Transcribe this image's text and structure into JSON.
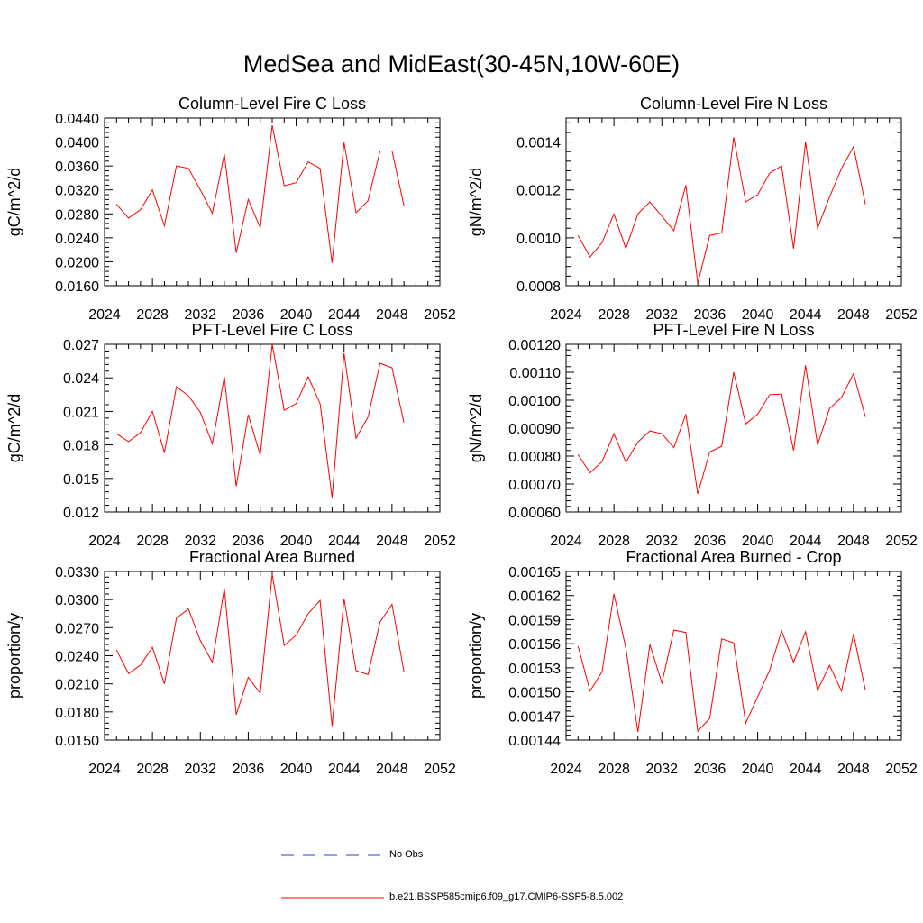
{
  "page": {
    "title": "MedSea and MidEast(30-45N,10W-60E)"
  },
  "legend": [
    {
      "label": "No Obs",
      "color": "#3a3acc",
      "dashed": true
    },
    {
      "label": "b.e21.BSSP585cmip6.f09_g17.CMIP6-SSP5-8.5.002",
      "color": "#ff0000",
      "dashed": false
    }
  ],
  "chart_data": [
    {
      "type": "line",
      "title": "Column-Level Fire C Loss",
      "xlabel": "",
      "ylabel": "gC/m^2/d",
      "xlim": [
        2024,
        2052
      ],
      "ylim": [
        0.016,
        0.044
      ],
      "xticks": [
        2024,
        2028,
        2032,
        2036,
        2040,
        2044,
        2048,
        2052
      ],
      "yticks": [
        "0.0160",
        "0.0200",
        "0.0240",
        "0.0280",
        "0.0320",
        "0.0360",
        "0.0400",
        "0.0440"
      ],
      "x": [
        2025,
        2026,
        2027,
        2028,
        2029,
        2030,
        2031,
        2032,
        2033,
        2034,
        2035,
        2036,
        2037,
        2038,
        2039,
        2040,
        2041,
        2042,
        2043,
        2044,
        2045,
        2046,
        2047,
        2048,
        2049
      ],
      "series": [
        {
          "color": "#ff0000",
          "values": [
            0.0296,
            0.0273,
            0.0287,
            0.032,
            0.026,
            0.036,
            0.0356,
            0.032,
            0.0281,
            0.038,
            0.0215,
            0.0304,
            0.0257,
            0.0428,
            0.0327,
            0.0332,
            0.0367,
            0.0356,
            0.0198,
            0.0399,
            0.0282,
            0.0302,
            0.0385,
            0.0385,
            0.0294
          ]
        }
      ]
    },
    {
      "type": "line",
      "title": "Column-Level Fire N Loss",
      "xlabel": "",
      "ylabel": "gN/m^2/d",
      "xlim": [
        2024,
        2052
      ],
      "ylim": [
        0.0008,
        0.0015
      ],
      "xticks": [
        2024,
        2028,
        2032,
        2036,
        2040,
        2044,
        2048,
        2052
      ],
      "yticks": [
        "0.0008",
        "0.0010",
        "0.0012",
        "0.0014"
      ],
      "x": [
        2025,
        2026,
        2027,
        2028,
        2029,
        2030,
        2031,
        2032,
        2033,
        2034,
        2035,
        2036,
        2037,
        2038,
        2039,
        2040,
        2041,
        2042,
        2043,
        2044,
        2045,
        2046,
        2047,
        2048,
        2049
      ],
      "series": [
        {
          "color": "#ff0000",
          "values": [
            0.00101,
            0.00092,
            0.00098,
            0.0011,
            0.000955,
            0.0011,
            0.00115,
            0.00109,
            0.00103,
            0.00122,
            0.00081,
            0.00101,
            0.00102,
            0.00142,
            0.00115,
            0.00118,
            0.00127,
            0.0013,
            0.000955,
            0.0014,
            0.00104,
            0.00117,
            0.00129,
            0.00138,
            0.00114
          ]
        }
      ]
    },
    {
      "type": "line",
      "title": "PFT-Level Fire C Loss",
      "xlabel": "",
      "ylabel": "gC/m^2/d",
      "xlim": [
        2024,
        2052
      ],
      "ylim": [
        0.012,
        0.027
      ],
      "xticks": [
        2024,
        2028,
        2032,
        2036,
        2040,
        2044,
        2048,
        2052
      ],
      "yticks": [
        "0.012",
        "0.015",
        "0.018",
        "0.021",
        "0.024",
        "0.027"
      ],
      "x": [
        2025,
        2026,
        2027,
        2028,
        2029,
        2030,
        2031,
        2032,
        2033,
        2034,
        2035,
        2036,
        2037,
        2038,
        2039,
        2040,
        2041,
        2042,
        2043,
        2044,
        2045,
        2046,
        2047,
        2048,
        2049
      ],
      "series": [
        {
          "color": "#ff0000",
          "values": [
            0.019,
            0.0183,
            0.0191,
            0.021,
            0.0173,
            0.0232,
            0.0224,
            0.0209,
            0.0181,
            0.0241,
            0.0143,
            0.0207,
            0.0171,
            0.027,
            0.0211,
            0.0217,
            0.0241,
            0.0217,
            0.0133,
            0.0262,
            0.0186,
            0.0205,
            0.0253,
            0.0249,
            0.02
          ]
        }
      ]
    },
    {
      "type": "line",
      "title": "PFT-Level Fire N Loss",
      "xlabel": "",
      "ylabel": "gN/m^2/d",
      "xlim": [
        2024,
        2052
      ],
      "ylim": [
        0.0006,
        0.0012
      ],
      "xticks": [
        2024,
        2028,
        2032,
        2036,
        2040,
        2044,
        2048,
        2052
      ],
      "yticks": [
        "0.00060",
        "0.00070",
        "0.00080",
        "0.00090",
        "0.00100",
        "0.00110",
        "0.00120"
      ],
      "x": [
        2025,
        2026,
        2027,
        2028,
        2029,
        2030,
        2031,
        2032,
        2033,
        2034,
        2035,
        2036,
        2037,
        2038,
        2039,
        2040,
        2041,
        2042,
        2043,
        2044,
        2045,
        2046,
        2047,
        2048,
        2049
      ],
      "series": [
        {
          "color": "#ff0000",
          "values": [
            0.000805,
            0.00074,
            0.00078,
            0.00088,
            0.000778,
            0.00085,
            0.00089,
            0.00088,
            0.00083,
            0.00095,
            0.000665,
            0.000815,
            0.000835,
            0.0011,
            0.000915,
            0.00095,
            0.00102,
            0.001022,
            0.00082,
            0.001125,
            0.00084,
            0.00097,
            0.00101,
            0.001095,
            0.00094
          ]
        }
      ]
    },
    {
      "type": "line",
      "title": "Fractional Area Burned",
      "xlabel": "",
      "ylabel": "proportion/y",
      "xlim": [
        2024,
        2052
      ],
      "ylim": [
        0.015,
        0.033
      ],
      "xticks": [
        2024,
        2028,
        2032,
        2036,
        2040,
        2044,
        2048,
        2052
      ],
      "yticks": [
        "0.0150",
        "0.0180",
        "0.0210",
        "0.0240",
        "0.0270",
        "0.0300",
        "0.0330"
      ],
      "x": [
        2025,
        2026,
        2027,
        2028,
        2029,
        2030,
        2031,
        2032,
        2033,
        2034,
        2035,
        2036,
        2037,
        2038,
        2039,
        2040,
        2041,
        2042,
        2043,
        2044,
        2045,
        2046,
        2047,
        2048,
        2049
      ],
      "series": [
        {
          "color": "#ff0000",
          "values": [
            0.0246,
            0.0221,
            0.023,
            0.0249,
            0.021,
            0.028,
            0.029,
            0.0256,
            0.0233,
            0.0312,
            0.0177,
            0.0217,
            0.02,
            0.0327,
            0.0251,
            0.0262,
            0.0285,
            0.0299,
            0.0165,
            0.0301,
            0.0224,
            0.022,
            0.0276,
            0.0295,
            0.0223
          ]
        }
      ]
    },
    {
      "type": "line",
      "title": "Fractional Area Burned - Crop",
      "xlabel": "",
      "ylabel": "proportion/y",
      "xlim": [
        2024,
        2052
      ],
      "ylim": [
        0.00144,
        0.00165
      ],
      "xticks": [
        2024,
        2028,
        2032,
        2036,
        2040,
        2044,
        2048,
        2052
      ],
      "yticks": [
        "0.00144",
        "0.00147",
        "0.00150",
        "0.00153",
        "0.00156",
        "0.00159",
        "0.00162",
        "0.00165"
      ],
      "x": [
        2025,
        2026,
        2027,
        2028,
        2029,
        2030,
        2031,
        2032,
        2033,
        2034,
        2035,
        2036,
        2037,
        2038,
        2039,
        2040,
        2041,
        2042,
        2043,
        2044,
        2045,
        2046,
        2047,
        2048,
        2049
      ],
      "series": [
        {
          "color": "#ff0000",
          "values": [
            0.001557,
            0.001501,
            0.001525,
            0.001622,
            0.001554,
            0.00145,
            0.001559,
            0.001511,
            0.001577,
            0.001574,
            0.001451,
            0.001467,
            0.001566,
            0.001561,
            0.001461,
            0.001494,
            0.001527,
            0.001576,
            0.001537,
            0.001575,
            0.001502,
            0.001533,
            0.001501,
            0.001572,
            0.001502
          ]
        }
      ]
    }
  ]
}
